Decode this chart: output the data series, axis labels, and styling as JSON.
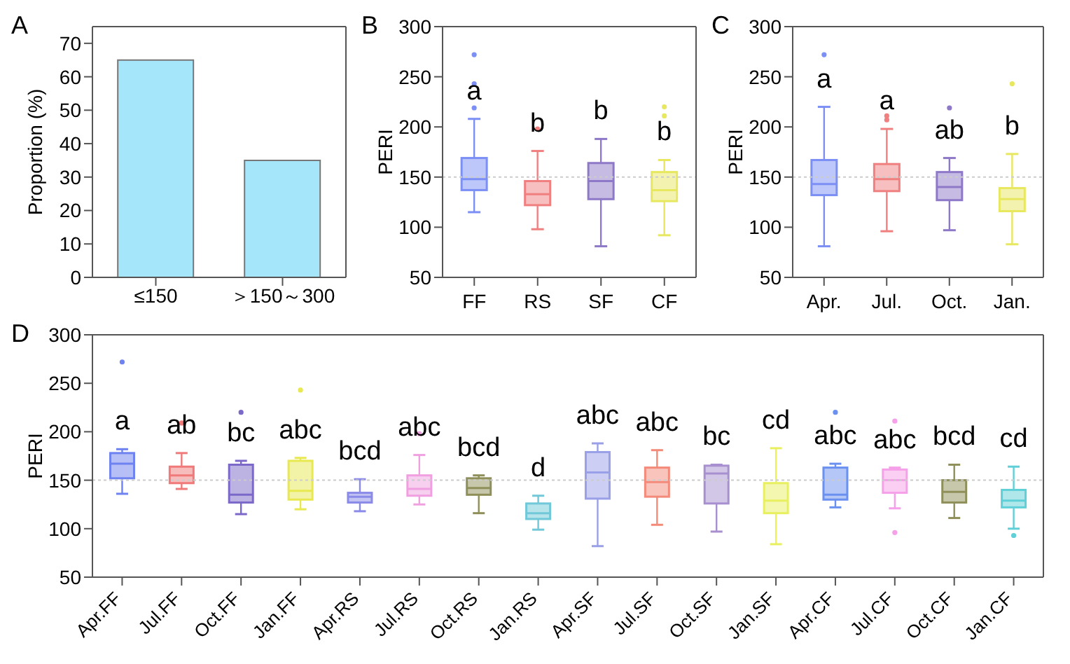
{
  "chart_data": [
    {
      "type": "bar",
      "title": "A",
      "ylabel": "Proportion (%)",
      "categories": [
        "≤150",
        "＞150～300"
      ],
      "values": [
        65,
        35
      ],
      "color": "#a6e6fa",
      "ylim": [
        0,
        75
      ],
      "yticks": [
        0,
        10,
        20,
        30,
        40,
        50,
        60,
        70
      ]
    },
    {
      "type": "box",
      "title": "B",
      "ylabel": "PERI",
      "categories": [
        "FF",
        "RS",
        "SF",
        "CF"
      ],
      "colors": [
        "#7b8ff5",
        "#f08080",
        "#8e78c8",
        "#e8e860"
      ],
      "ylim": [
        50,
        300
      ],
      "yticks": [
        50,
        100,
        150,
        200,
        250,
        300
      ],
      "boxes": [
        {
          "low": 115,
          "q1": 137,
          "median": 148,
          "q3": 169,
          "high": 208,
          "outliers": [
            219,
            243,
            272
          ]
        },
        {
          "low": 98,
          "q1": 122,
          "median": 133,
          "q3": 146,
          "high": 176,
          "outliers": [
            198
          ]
        },
        {
          "low": 81,
          "q1": 128,
          "median": 146,
          "q3": 164,
          "high": 188
        },
        {
          "low": 92,
          "q1": 126,
          "median": 137,
          "q3": 155,
          "high": 167,
          "outliers": [
            211,
            220
          ]
        }
      ],
      "ref_lines": [
        {
          "axis": "y",
          "value": 150,
          "color": "#cccccc",
          "line_style": "dotted"
        }
      ],
      "annotations": [
        "a",
        "b",
        "b",
        "b"
      ]
    },
    {
      "type": "box",
      "title": "C",
      "ylabel": "PERI",
      "categories": [
        "Apr.",
        "Jul.",
        "Oct.",
        "Jan."
      ],
      "colors": [
        "#7b8ff5",
        "#f08080",
        "#8e78c8",
        "#e8e860"
      ],
      "ylim": [
        50,
        300
      ],
      "yticks": [
        50,
        100,
        150,
        200,
        250,
        300
      ],
      "boxes": [
        {
          "low": 81,
          "q1": 132,
          "median": 143,
          "q3": 167,
          "high": 220,
          "outliers": [
            272
          ]
        },
        {
          "low": 96,
          "q1": 136,
          "median": 148,
          "q3": 163,
          "high": 198,
          "outliers": [
            207,
            211
          ]
        },
        {
          "low": 97,
          "q1": 127,
          "median": 140,
          "q3": 155,
          "high": 169,
          "outliers": [
            219
          ]
        },
        {
          "low": 83,
          "q1": 116,
          "median": 128,
          "q3": 139,
          "high": 173,
          "outliers": [
            243
          ]
        }
      ],
      "ref_lines": [
        {
          "axis": "y",
          "value": 150,
          "color": "#cccccc",
          "line_style": "dotted"
        }
      ],
      "annotations": [
        "a",
        "a",
        "ab",
        "b"
      ]
    },
    {
      "type": "box",
      "title": "D",
      "ylabel": "PERI",
      "categories": [
        "Apr.FF",
        "Jul.FF",
        "Oct.FF",
        "Jan.FF",
        "Apr.RS",
        "Jul.RS",
        "Oct.RS",
        "Jan.RS",
        "Apr.SF",
        "Jul.SF",
        "Oct.SF",
        "Jan.SF",
        "Apr.CF",
        "Jul.CF",
        "Oct.CF",
        "Jan.CF"
      ],
      "colors": [
        "#6e82f0",
        "#f07a7a",
        "#7b68c8",
        "#e8e850",
        "#8a8ae8",
        "#f0a0e0",
        "#8f8f5a",
        "#70c8d8",
        "#9aa0e8",
        "#f38a7a",
        "#a890d0",
        "#e8f060",
        "#6a90f0",
        "#f5a0e8",
        "#8f8f5a",
        "#60d0d8"
      ],
      "ylim": [
        50,
        300
      ],
      "yticks": [
        50,
        100,
        150,
        200,
        250,
        300
      ],
      "boxes": [
        {
          "low": 136,
          "q1": 152,
          "median": 167,
          "q3": 178,
          "high": 182,
          "outliers": [
            272
          ]
        },
        {
          "low": 141,
          "q1": 147,
          "median": 155,
          "q3": 164,
          "high": 178,
          "outliers": [
            209
          ]
        },
        {
          "low": 115,
          "q1": 127,
          "median": 135,
          "q3": 166,
          "high": 170,
          "outliers": [
            220
          ]
        },
        {
          "low": 120,
          "q1": 130,
          "median": 139,
          "q3": 170,
          "high": 173,
          "outliers": [
            243
          ]
        },
        {
          "low": 118,
          "q1": 127,
          "median": 133,
          "q3": 137,
          "high": 151
        },
        {
          "low": 125,
          "q1": 134,
          "median": 141,
          "q3": 155,
          "high": 176,
          "outliers": [
            198
          ]
        },
        {
          "low": 116,
          "q1": 135,
          "median": 142,
          "q3": 152,
          "high": 155
        },
        {
          "low": 99,
          "q1": 110,
          "median": 116,
          "q3": 126,
          "high": 134
        },
        {
          "low": 82,
          "q1": 131,
          "median": 158,
          "q3": 179,
          "high": 188
        },
        {
          "low": 104,
          "q1": 133,
          "median": 148,
          "q3": 163,
          "high": 181
        },
        {
          "low": 97,
          "q1": 126,
          "median": 157,
          "q3": 165,
          "high": 166
        },
        {
          "low": 84,
          "q1": 116,
          "median": 129,
          "q3": 147,
          "high": 183
        },
        {
          "low": 122,
          "q1": 130,
          "median": 135,
          "q3": 163,
          "high": 167,
          "outliers": [
            220
          ]
        },
        {
          "low": 121,
          "q1": 137,
          "median": 150,
          "q3": 161,
          "high": 163,
          "outliers": [
            96,
            211
          ]
        },
        {
          "low": 111,
          "q1": 127,
          "median": 138,
          "q3": 150,
          "high": 166
        },
        {
          "low": 100,
          "q1": 122,
          "median": 129,
          "q3": 140,
          "high": 164,
          "outliers": [
            93
          ]
        }
      ],
      "ref_lines": [
        {
          "axis": "y",
          "value": 150,
          "color": "#cccccc",
          "line_style": "dotted"
        }
      ],
      "annotations": [
        "a",
        "ab",
        "bc",
        "abc",
        "bcd",
        "abc",
        "bcd",
        "d",
        "abc",
        "abc",
        "bc",
        "cd",
        "abc",
        "abc",
        "bcd",
        "cd"
      ]
    }
  ]
}
